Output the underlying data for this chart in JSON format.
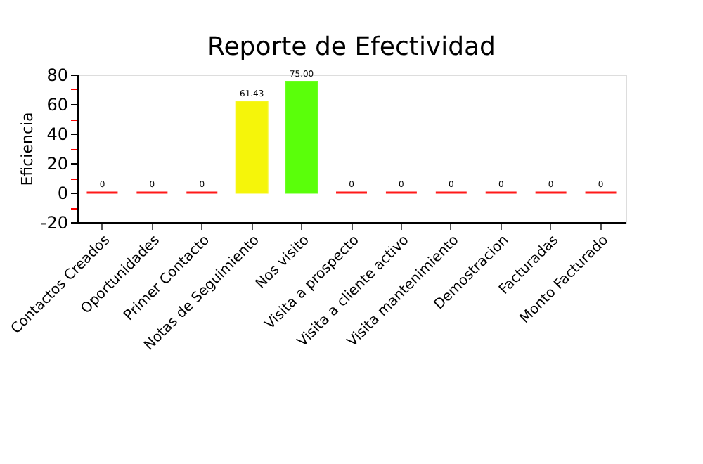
{
  "chart_data": {
    "type": "bar",
    "title": "Reporte de Efectividad",
    "ylabel": "Eficiencia",
    "categories": [
      "Contactos Creados",
      "Oportunidades",
      "Primer Contacto",
      "Notas de Seguimiento",
      "Nos visito",
      "Visita a prospecto",
      "Visita a cliente activo",
      "Visita mantenimiento",
      "Demostracion",
      "Facturadas",
      "Monto Facturado"
    ],
    "values": [
      0,
      0,
      0,
      61.43,
      75.0,
      0,
      0,
      0,
      0,
      0,
      0
    ],
    "value_labels": [
      "0",
      "0",
      "0",
      "61.43",
      "75.00",
      "0",
      "0",
      "0",
      "0",
      "0",
      "0"
    ],
    "colors": [
      "#ff0000",
      "#ff0000",
      "#ff0000",
      "#f5f50a",
      "#5aff0a",
      "#ff0000",
      "#ff0000",
      "#ff0000",
      "#ff0000",
      "#ff0000",
      "#ff0000"
    ],
    "ylim": [
      -20,
      80
    ],
    "yticks": [
      -20,
      {
        "value": -10,
        "label": null
      },
      0,
      {
        "value": 10,
        "label": null
      },
      20,
      {
        "value": 30,
        "label": null
      },
      40,
      {
        "value": 50,
        "label": null
      },
      60,
      {
        "value": 70,
        "label": null
      },
      80
    ],
    "grid": false
  }
}
